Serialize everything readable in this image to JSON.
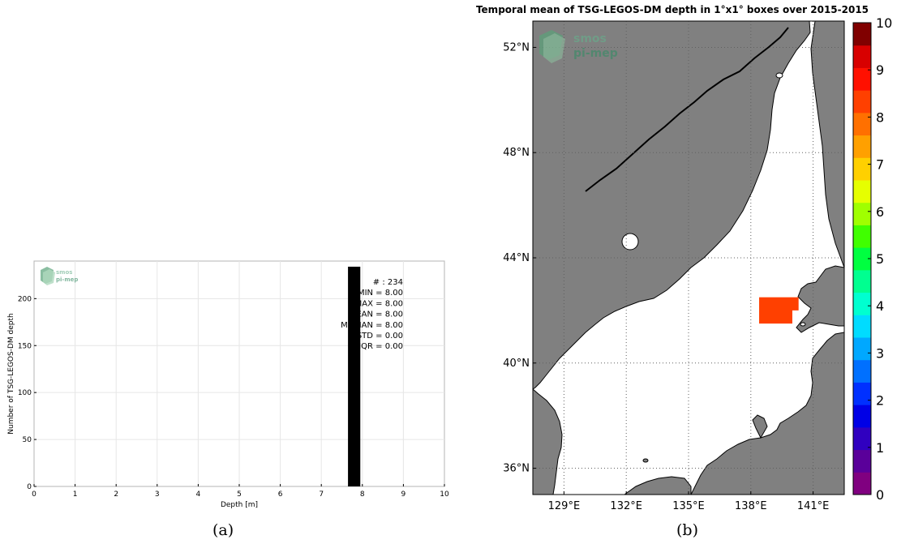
{
  "captions": {
    "left": "(a)",
    "right": "(b)"
  },
  "logo": {
    "line1": "smos",
    "line2": "pi-mep"
  },
  "chart_data": [
    {
      "type": "bar",
      "title": "",
      "xlabel": "Depth [m]",
      "ylabel": "Number of TSG-LEGOS-DM depth",
      "xlim": [
        0,
        10
      ],
      "ylim": [
        0,
        240
      ],
      "xticks": [
        0,
        1,
        2,
        3,
        4,
        5,
        6,
        7,
        8,
        9,
        10
      ],
      "yticks": [
        0,
        50,
        100,
        150,
        200
      ],
      "grid": true,
      "bars": [
        {
          "x_start": 7.65,
          "x_end": 7.95,
          "value": 234
        }
      ],
      "stats": [
        {
          "label": "# : 234"
        },
        {
          "label": "MIN = 8.00"
        },
        {
          "label": "MAX =  8.00"
        },
        {
          "label": "MEAN = 8.00"
        },
        {
          "label": "MEDIAN = 8.00"
        },
        {
          "label": "STD = 0.00"
        },
        {
          "label": "IQR = 0.00"
        }
      ],
      "colors": {
        "bar": "#000000",
        "grid": "#e6e6e6"
      }
    },
    {
      "type": "heatmap",
      "title": "Temporal mean of TSG-LEGOS-DM depth in 1°x1° boxes over 2015-2015",
      "lon_range": [
        127.5,
        142.5
      ],
      "lat_range": [
        35,
        53
      ],
      "lon_ticks": [
        129,
        132,
        135,
        138,
        141
      ],
      "lon_labels": [
        "129°E",
        "132°E",
        "135°E",
        "138°E",
        "141°E"
      ],
      "lat_ticks": [
        36,
        40,
        44,
        48,
        52
      ],
      "lat_labels": [
        "36°N",
        "40°N",
        "44°N",
        "48°N",
        "52°N"
      ],
      "grid": "dotted",
      "cells": [
        {
          "lon0": 138.4,
          "lon1": 140.0,
          "lat0": 41.5,
          "lat1": 42.5,
          "value": 8,
          "color": "#ff4000"
        },
        {
          "lon0": 140.0,
          "lon1": 140.3,
          "lat0": 42.0,
          "lat1": 42.5,
          "value": 8,
          "color": "#ff4000"
        }
      ],
      "colorbar": {
        "min": 0,
        "max": 10,
        "ticks": [
          0,
          1,
          2,
          3,
          4,
          5,
          6,
          7,
          8,
          9,
          10
        ],
        "colors": [
          "#800080",
          "#5a009a",
          "#3000c0",
          "#0000e6",
          "#0030ff",
          "#0070ff",
          "#00a8ff",
          "#00dcff",
          "#00ffd0",
          "#00ff90",
          "#00ff40",
          "#40ff00",
          "#a0ff00",
          "#e6ff00",
          "#ffd000",
          "#ffa000",
          "#ff7000",
          "#ff4000",
          "#ff1000",
          "#d80000",
          "#800000"
        ]
      },
      "colors": {
        "land": "#808080",
        "ocean": "#ffffff",
        "frame": "#000000"
      }
    }
  ]
}
